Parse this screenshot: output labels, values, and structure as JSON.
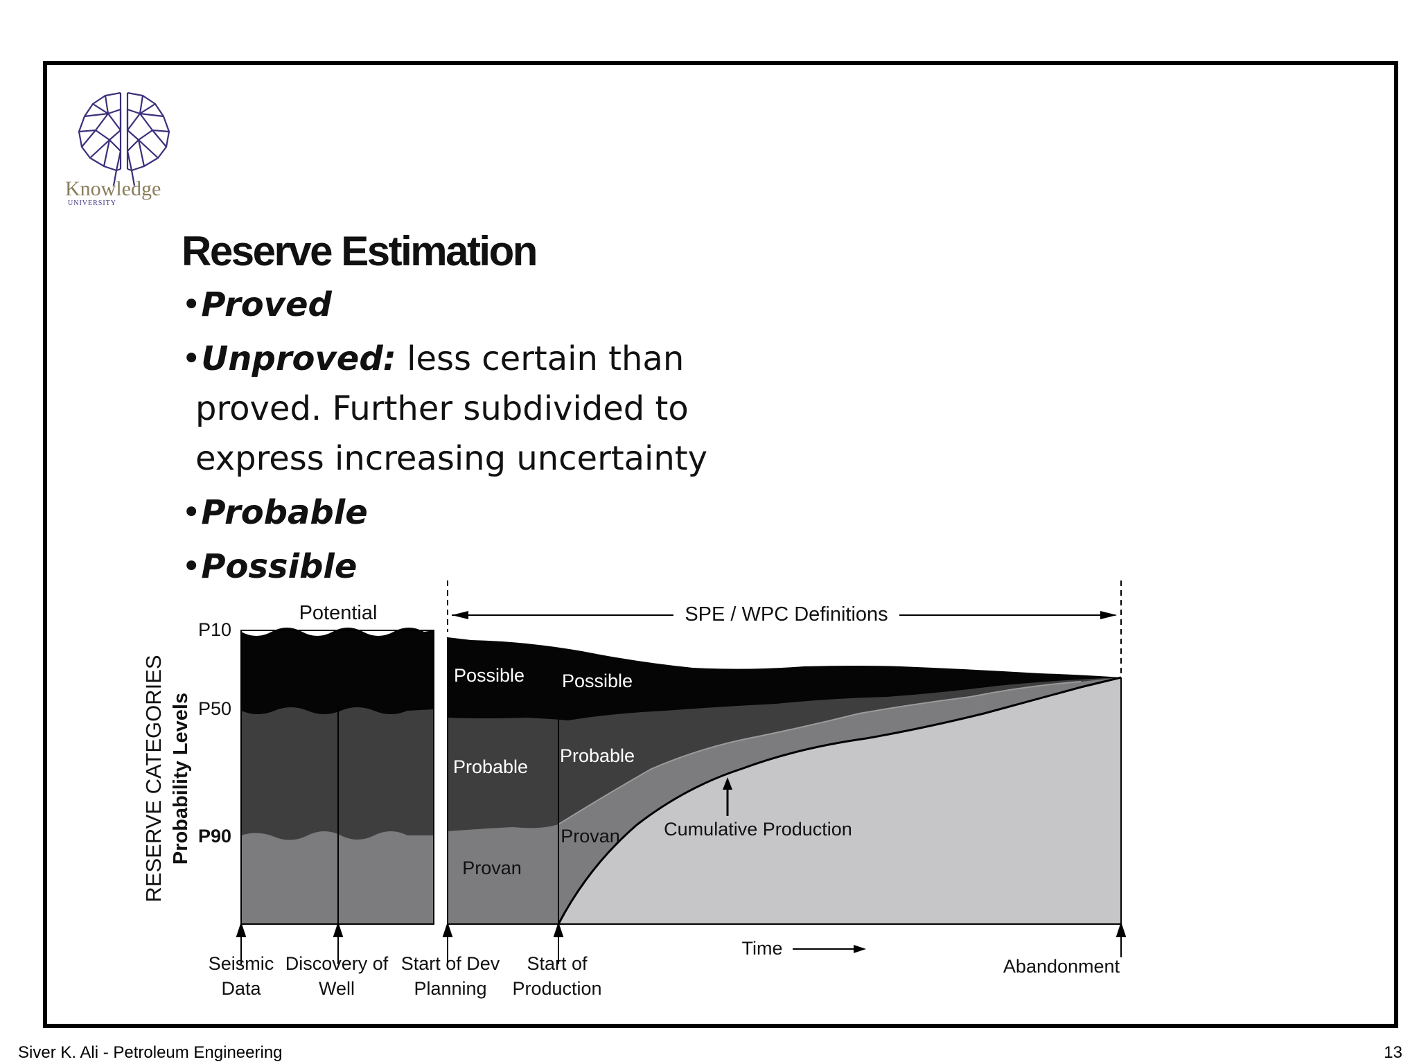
{
  "logo": {
    "text": "Knowledge",
    "subtext": "UNIVERSITY",
    "icon": "brain-network-icon"
  },
  "title": "Reserve Estimation",
  "bullets": [
    {
      "bold": "Proved",
      "rest": ""
    },
    {
      "bold": "Unproved:",
      "rest": " less certain than",
      "lines": [
        "proved. Further subdivided to",
        "express  increasing uncertainty"
      ]
    },
    {
      "bold": "Probable",
      "rest": ""
    },
    {
      "bold": "Possible",
      "rest": ""
    }
  ],
  "diagram": {
    "potential_label": "Potential",
    "spe_label": "SPE / WPC Definitions",
    "y_axis_title": "RESERVE CATEGORIES",
    "y_axis_subtitle": "Probability Levels",
    "levels": [
      "P10",
      "P50",
      "P90"
    ],
    "region_labels": {
      "possible_left": "Possible",
      "possible_right": "Possible",
      "probable_left": "Probable",
      "probable_right": "Probable",
      "provan_left": "Provan",
      "provan_right": "Provan",
      "cumulative": "Cumulative Production"
    },
    "time_label": "Time",
    "milestones": [
      {
        "line1": "Seismic",
        "line2": "Data"
      },
      {
        "line1": "Discovery of",
        "line2": "Well"
      },
      {
        "line1": "Start of Dev",
        "line2": "Planning"
      },
      {
        "line1": "Start of",
        "line2": "Production"
      },
      {
        "line1": "Abandonment",
        "line2": ""
      }
    ],
    "colors": {
      "possible": "#050505",
      "probable": "#3e3e3e",
      "provan": "#7c7c7e",
      "cumulative": "#c6c6c8"
    }
  },
  "footer": {
    "left": "Siver K. Ali - Petroleum Engineering",
    "page": "13"
  }
}
